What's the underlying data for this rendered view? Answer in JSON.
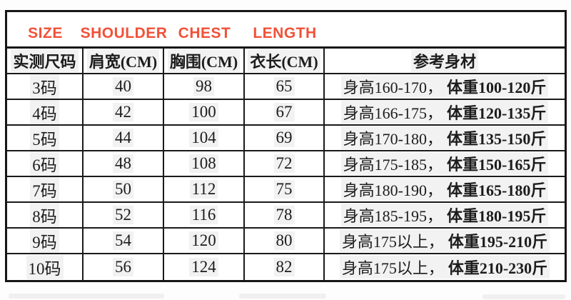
{
  "banner": {
    "size_label": "SIZE",
    "shoulder_label": "SHOULDER",
    "chest_label": "CHEST",
    "length_label": "LENGTH"
  },
  "table": {
    "headers": {
      "size": "实测尺码",
      "shoulder": "肩宽(CM)",
      "chest": "胸围(CM)",
      "length": "衣长(CM)",
      "reference": "参考身材"
    },
    "rows": [
      {
        "size": "3码",
        "shoulder": "40",
        "chest": "98",
        "length": "65",
        "ref_normal": "身高160-170，",
        "ref_bold": "体重100-120斤"
      },
      {
        "size": "4码",
        "shoulder": "42",
        "chest": "100",
        "length": "67",
        "ref_normal": "身高166-175，",
        "ref_bold": "体重120-135斤"
      },
      {
        "size": "5码",
        "shoulder": "44",
        "chest": "104",
        "length": "69",
        "ref_normal": "身高170-180，",
        "ref_bold": "体重135-150斤"
      },
      {
        "size": "6码",
        "shoulder": "48",
        "chest": "108",
        "length": "72",
        "ref_normal": "身高175-185，",
        "ref_bold": "体重150-165斤"
      },
      {
        "size": "7码",
        "shoulder": "50",
        "chest": "112",
        "length": "75",
        "ref_normal": "身高180-190，",
        "ref_bold": "体重165-180斤"
      },
      {
        "size": "8码",
        "shoulder": "52",
        "chest": "116",
        "length": "78",
        "ref_normal": "身高185-195，",
        "ref_bold": "体重180-195斤"
      },
      {
        "size": "9码",
        "shoulder": "54",
        "chest": "120",
        "length": "80",
        "ref_normal": "身高175以上，",
        "ref_bold": "体重195-210斤"
      },
      {
        "size": "10码",
        "shoulder": "56",
        "chest": "124",
        "length": "82",
        "ref_normal": "身高175以上，",
        "ref_bold": "体重210-230斤"
      }
    ]
  },
  "colors": {
    "accent_red": "#f15138",
    "border_black": "#1a1a1a",
    "text_black": "#1c1c1c"
  },
  "chart_data": {
    "type": "table",
    "title_row": [
      "SIZE",
      "SHOULDER",
      "CHEST",
      "LENGTH"
    ],
    "columns": [
      "实测尺码",
      "肩宽(CM)",
      "胸围(CM)",
      "衣长(CM)",
      "参考身材"
    ],
    "rows": [
      [
        "3码",
        40,
        98,
        65,
        "身高160-170，体重100-120斤"
      ],
      [
        "4码",
        42,
        100,
        67,
        "身高166-175，体重120-135斤"
      ],
      [
        "5码",
        44,
        104,
        69,
        "身高170-180，体重135-150斤"
      ],
      [
        "6码",
        48,
        108,
        72,
        "身高175-185，体重150-165斤"
      ],
      [
        "7码",
        50,
        112,
        75,
        "身高180-190，体重165-180斤"
      ],
      [
        "8码",
        52,
        116,
        78,
        "身高185-195，体重180-195斤"
      ],
      [
        "9码",
        54,
        120,
        80,
        "身高175以上，体重195-210斤"
      ],
      [
        "10码",
        56,
        124,
        82,
        "身高175以上，体重210-230斤"
      ]
    ]
  }
}
